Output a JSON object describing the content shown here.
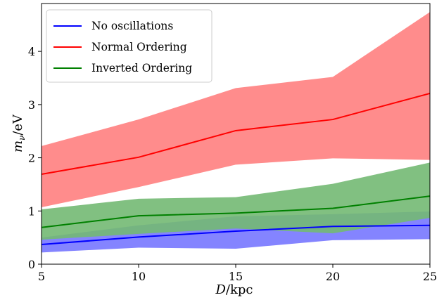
{
  "chart_data": {
    "type": "line",
    "xlabel": "D/kpc",
    "ylabel": "m_ν/eV",
    "xlim": [
      5,
      25
    ],
    "ylim": [
      0,
      4.9
    ],
    "xticks": [
      5,
      10,
      15,
      20,
      25
    ],
    "yticks": [
      0,
      1,
      2,
      3,
      4
    ],
    "x": [
      5,
      10,
      15,
      20,
      25
    ],
    "grid": false,
    "legend_position": "top-left",
    "series": [
      {
        "name": "No oscillations",
        "color": "#0000ff",
        "band_color": "#7777ff",
        "values": [
          0.37,
          0.51,
          0.62,
          0.71,
          0.73
        ],
        "lower": [
          0.22,
          0.31,
          0.29,
          0.45,
          0.47
        ],
        "upper": [
          0.5,
          0.73,
          0.9,
          0.94,
          0.99
        ]
      },
      {
        "name": "Normal Ordering",
        "color": "#ff0000",
        "band_color": "#ff7f7f",
        "values": [
          1.69,
          2.01,
          2.51,
          2.72,
          3.21
        ],
        "lower": [
          1.07,
          1.45,
          1.87,
          1.99,
          1.96
        ],
        "upper": [
          2.22,
          2.72,
          3.31,
          3.52,
          4.74
        ]
      },
      {
        "name": "Inverted Ordering",
        "color": "#008000",
        "band_color": "#73b973",
        "values": [
          0.69,
          0.91,
          0.96,
          1.05,
          1.28
        ],
        "lower": [
          0.46,
          0.57,
          0.67,
          0.58,
          0.87
        ],
        "upper": [
          1.03,
          1.23,
          1.26,
          1.51,
          1.91
        ]
      }
    ]
  }
}
